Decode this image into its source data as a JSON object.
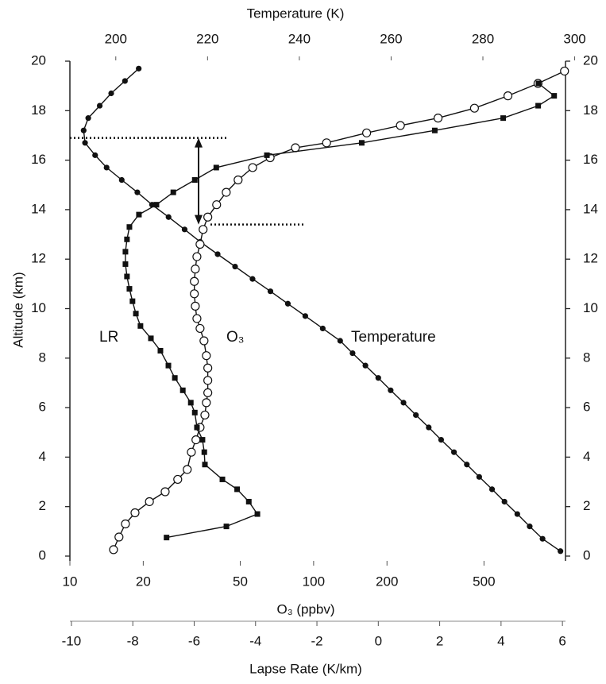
{
  "chart_data": {
    "type": "line",
    "ylabel": "Altitude (km)",
    "ylim": [
      0,
      20
    ],
    "yticks": [
      0,
      2,
      4,
      6,
      8,
      10,
      12,
      14,
      16,
      18,
      20
    ],
    "y2lim": [
      0,
      20
    ],
    "y2ticks": [
      0,
      2,
      4,
      6,
      8,
      10,
      12,
      14,
      16,
      18,
      20
    ],
    "x_axes": [
      {
        "label": "Temperature (K)",
        "position": "top",
        "scale": "linear",
        "xlim": [
          190,
          298
        ],
        "xticks": [
          200,
          220,
          240,
          260,
          280,
          300
        ]
      },
      {
        "label": "O₃ (ppbv)",
        "position": "bottom",
        "scale": "log",
        "xlim": [
          10,
          1080
        ],
        "xticks": [
          10,
          20,
          50,
          100,
          200,
          500
        ]
      },
      {
        "label": "Lapse Rate (K/km)",
        "position": "bottom2",
        "scale": "linear",
        "xlim": [
          -10.05,
          6.1
        ],
        "xticks": [
          -10,
          -8,
          -6,
          -4,
          -2,
          0,
          2,
          4,
          6
        ]
      }
    ],
    "series": [
      {
        "name": "Temperature",
        "x_axis": 0,
        "marker": "filled-circle",
        "color": "#111111",
        "y": [
          0.2,
          0.7,
          1.2,
          1.7,
          2.2,
          2.7,
          3.2,
          3.7,
          4.2,
          4.7,
          5.2,
          5.7,
          6.2,
          6.7,
          7.2,
          7.7,
          8.2,
          8.7,
          9.2,
          9.7,
          10.2,
          10.7,
          11.2,
          11.7,
          12.2,
          12.7,
          13.2,
          13.7,
          14.2,
          14.7,
          15.2,
          15.7,
          16.2,
          16.7,
          17.2,
          17.7,
          18.2,
          18.7,
          19.2,
          19.7
        ],
        "x": [
          296.9,
          293.0,
          290.2,
          287.5,
          284.7,
          282.0,
          279.2,
          276.5,
          273.7,
          270.9,
          268.2,
          265.4,
          262.7,
          259.9,
          257.2,
          254.4,
          251.6,
          248.9,
          245.1,
          241.3,
          237.5,
          233.7,
          229.8,
          226.0,
          222.2,
          218.4,
          215.0,
          211.5,
          207.9,
          204.7,
          201.3,
          198.0,
          195.5,
          193.3,
          193.0,
          194.0,
          196.5,
          199.0,
          202.0,
          205.0
        ]
      },
      {
        "name": "O₃",
        "x_axis": 1,
        "marker": "open-circle",
        "color": "#111111",
        "y": [
          0.26,
          0.77,
          1.3,
          1.75,
          2.2,
          2.6,
          3.1,
          3.5,
          4.2,
          4.7,
          5.2,
          5.7,
          6.2,
          6.6,
          7.1,
          7.6,
          8.1,
          8.7,
          9.2,
          9.6,
          10.1,
          10.6,
          11.1,
          11.6,
          12.1,
          12.6,
          13.2,
          13.7,
          14.2,
          14.7,
          15.2,
          15.7,
          16.1,
          16.5,
          16.7,
          17.1,
          17.4,
          17.7,
          18.1,
          18.6,
          19.1,
          19.6
        ],
        "x": [
          15.1,
          15.9,
          16.9,
          18.5,
          21.2,
          24.6,
          27.7,
          30.3,
          31.5,
          32.9,
          34.2,
          35.8,
          36.3,
          36.8,
          36.8,
          36.8,
          36.3,
          35.5,
          34.2,
          33.2,
          32.7,
          32.4,
          32.4,
          32.7,
          33.2,
          34.2,
          35.2,
          36.8,
          40.0,
          43.8,
          49.0,
          56.2,
          66.3,
          84.2,
          113,
          165,
          227,
          324,
          457,
          627,
          833,
          1070
        ]
      },
      {
        "name": "LR",
        "x_axis": 2,
        "marker": "square",
        "color": "#111111",
        "y": [
          0.75,
          1.2,
          1.7,
          2.2,
          2.7,
          3.1,
          3.7,
          4.2,
          4.7,
          5.2,
          5.8,
          6.2,
          6.7,
          7.2,
          7.7,
          8.3,
          8.8,
          9.3,
          9.8,
          10.3,
          10.8,
          11.3,
          11.8,
          12.3,
          12.8,
          13.3,
          13.8,
          14.2,
          14.7,
          15.2,
          15.7,
          16.2,
          16.7,
          17.2,
          17.7,
          18.2,
          18.6,
          19.1
        ],
        "x": [
          -6.9,
          -4.95,
          -3.94,
          -4.22,
          -4.6,
          -5.08,
          -5.65,
          -5.67,
          -5.73,
          -5.91,
          -5.98,
          -6.11,
          -6.37,
          -6.63,
          -6.84,
          -7.1,
          -7.41,
          -7.75,
          -7.9,
          -8.01,
          -8.11,
          -8.19,
          -8.24,
          -8.24,
          -8.19,
          -8.11,
          -7.8,
          -7.23,
          -6.68,
          -5.98,
          -5.28,
          -3.63,
          -0.54,
          1.84,
          4.07,
          5.21,
          5.73,
          5.22
        ]
      }
    ],
    "hlines": [
      16.9,
      13.4
    ]
  }
}
